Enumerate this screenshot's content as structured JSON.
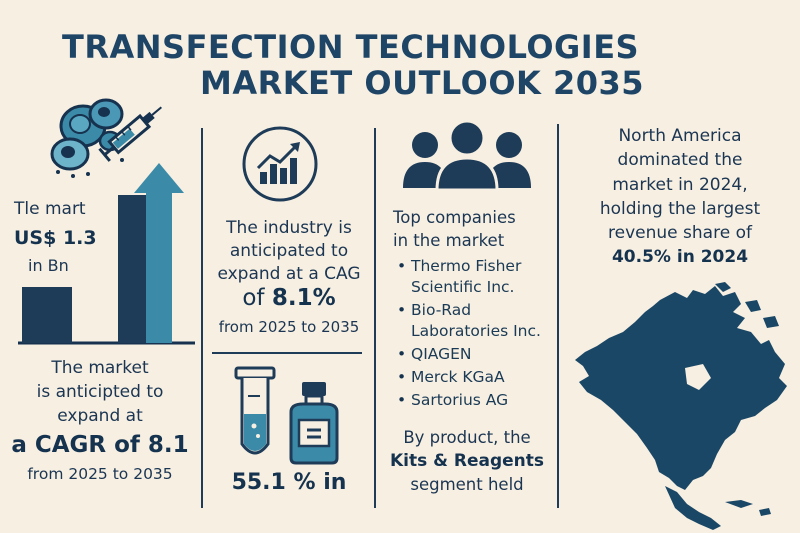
{
  "title": {
    "line1": "TRANSFECTION TECHNOLOGIES",
    "line2": "MARKET OUTLOOK 2035"
  },
  "panel1": {
    "market_label": "Tle mart",
    "market_value": "US$ 1.3",
    "market_unit": "in Bn",
    "bars": [
      {
        "label": "bar-1",
        "value": 0.4
      },
      {
        "label": "bar-2",
        "value": 0.85
      }
    ],
    "lower_line1": "The market",
    "lower_line2": "is anticipted to",
    "lower_line3": "expand at",
    "lower_cagr": "a CAGR of 8.1",
    "lower_period": "from 2025 to 2035"
  },
  "panel2": {
    "line1": "The industry is",
    "line2": "anticipated to",
    "line3": "expand at a CAG",
    "prefix": "of ",
    "value": "8.1%",
    "period": "from 2025 to 2035",
    "share": "55.1 % in"
  },
  "panel3": {
    "intro1": "Top companies",
    "intro2": "in the market",
    "companies": [
      [
        "Thermo Fisher",
        "Scientific Inc."
      ],
      [
        "Bio-Rad",
        "Laboratories Inc."
      ],
      [
        "QIAGEN"
      ],
      [
        "Merck KGaA"
      ],
      [
        "Sartorius AG"
      ]
    ],
    "product1": "By product, the",
    "product2": "Kits & Reagents",
    "product3": "segment held"
  },
  "panel4": {
    "line1": "North America",
    "line2": "dominated the",
    "line3": "market in 2024,",
    "line4": "holding the largest",
    "line5": "revenue share of",
    "line6": "40.5% in 2024"
  },
  "colors": {
    "background": "#f6efe2",
    "navy": "#1e3b58",
    "teal": "#3b8ba8",
    "title": "#1e4466"
  },
  "icons": [
    "cells-icon",
    "syringe-icon",
    "growth-chart-icon",
    "people-icon",
    "test-tube-icon",
    "vial-icon",
    "north-america-map"
  ]
}
